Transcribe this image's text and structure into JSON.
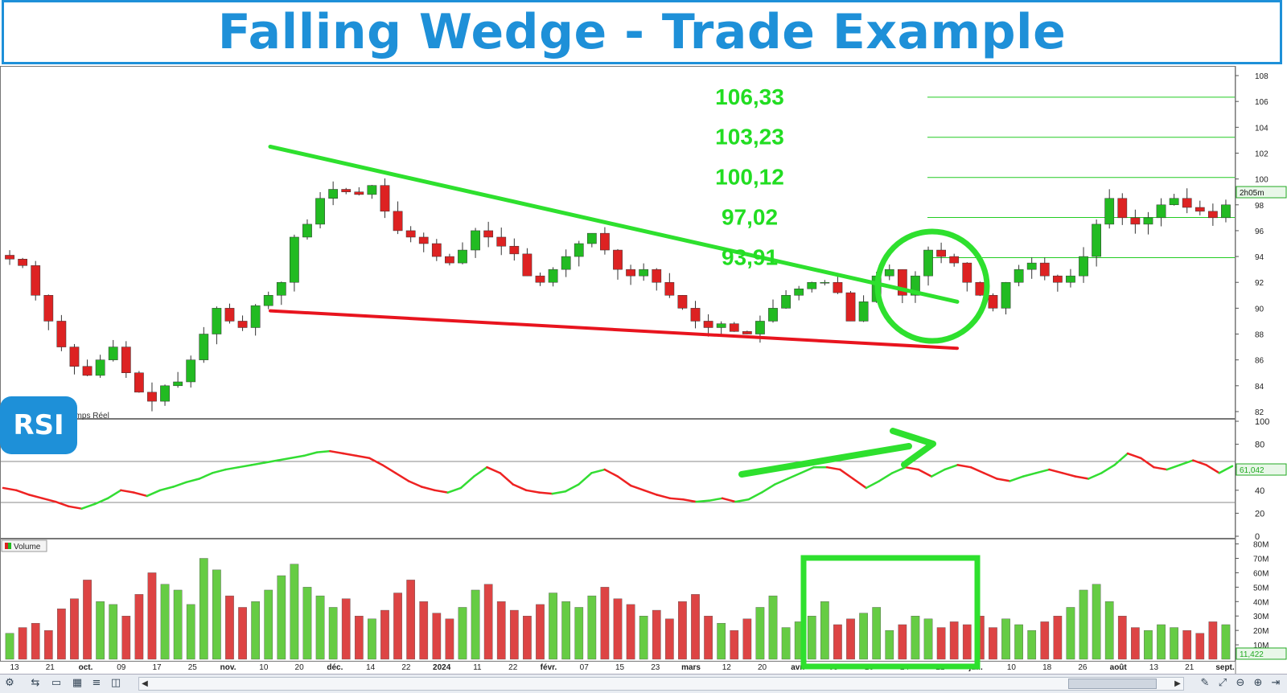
{
  "title": "Falling Wedge - Trade Example",
  "rsi_badge": "RSI",
  "price_panel_label": "emps Réel",
  "time_badge": "2h05m",
  "rsi_value_badge": "61,042",
  "volume_value_badge": "11,422",
  "volume_legend": "Volume",
  "target_levels": [
    "106,33",
    "103,23",
    "100,12",
    "97,02",
    "93,91"
  ],
  "colors": {
    "accent": "#1e90d8",
    "wedge_upper": "#2ee02e",
    "wedge_lower": "#e8141e",
    "up_candle": "#22bb22",
    "down_candle": "#dd2222",
    "level_text": "#22dd22"
  },
  "chart_data": [
    {
      "type": "candlestick",
      "panel": "price",
      "y_axis_ticks": [
        "82",
        "84",
        "86",
        "88",
        "90",
        "92",
        "94",
        "96",
        "98",
        "100",
        "102",
        "104",
        "106",
        "108"
      ],
      "ylim": [
        81.5,
        108.5
      ],
      "x_tick_labels": [
        "13",
        "21",
        "oct.",
        "09",
        "17",
        "25",
        "nov.",
        "10",
        "20",
        "déc.",
        "14",
        "22",
        "2024",
        "11",
        "22",
        "févr.",
        "07",
        "15",
        "23",
        "mars",
        "12",
        "20",
        "avr.",
        "08",
        "16",
        "24",
        "21",
        "juil.",
        "10",
        "18",
        "26",
        "août",
        "13",
        "21",
        "sept."
      ],
      "close_path": [
        93.8,
        93.3,
        91.0,
        89.0,
        87.0,
        85.5,
        84.8,
        86.0,
        87.0,
        85.0,
        83.5,
        82.8,
        84.0,
        84.3,
        86.0,
        88.0,
        90.0,
        89.0,
        88.5,
        90.2,
        91.0,
        92.0,
        95.5,
        96.5,
        98.5,
        99.2,
        99.0,
        98.8,
        99.5,
        97.5,
        96.0,
        95.5,
        95.0,
        94.0,
        93.5,
        94.5,
        96.0,
        95.5,
        94.8,
        94.2,
        92.5,
        92.0,
        93.0,
        94.0,
        95.0,
        95.8,
        94.5,
        93.0,
        92.5,
        93.0,
        92.0,
        91.0,
        90.0,
        89.0,
        88.5,
        88.8,
        88.2,
        88.0,
        89.0,
        90.0,
        91.0,
        91.5,
        92.0,
        92.0,
        91.2,
        89.0,
        90.5,
        92.5,
        93.0,
        91.0,
        92.5,
        94.5,
        94.0,
        93.5,
        92.0,
        91.0,
        90.0,
        92.0,
        93.0,
        93.5,
        92.5,
        92.0,
        92.5,
        94.0,
        96.5,
        98.5,
        97.0,
        96.5,
        97.0,
        98.0,
        98.5,
        97.8,
        97.5,
        97.0,
        98.0
      ],
      "wedge_upper_line": {
        "start": 102.5,
        "end": 90.5
      },
      "wedge_lower_line": {
        "start": 89.8,
        "end": 86.9
      },
      "target_level_values": [
        106.33,
        103.23,
        100.12,
        97.02,
        93.91
      ]
    },
    {
      "type": "line",
      "panel": "rsi",
      "y_axis_ticks": [
        "0",
        "20",
        "40",
        "60",
        "80",
        "100"
      ],
      "ylim": [
        0,
        100
      ],
      "reference_lines": [
        30,
        70
      ],
      "values": [
        42,
        40,
        36,
        33,
        30,
        26,
        24,
        28,
        33,
        40,
        38,
        35,
        40,
        43,
        47,
        50,
        55,
        58,
        60,
        62,
        64,
        66,
        68,
        70,
        73,
        74,
        72,
        70,
        68,
        62,
        55,
        48,
        43,
        40,
        38,
        42,
        52,
        60,
        55,
        45,
        40,
        38,
        37,
        39,
        45,
        55,
        58,
        52,
        44,
        40,
        36,
        33,
        32,
        30,
        31,
        33,
        30,
        32,
        38,
        45,
        50,
        55,
        60,
        60,
        58,
        50,
        42,
        48,
        55,
        60,
        58,
        52,
        58,
        62,
        60,
        55,
        50,
        48,
        52,
        55,
        58,
        55,
        52,
        50,
        55,
        62,
        72,
        68,
        60,
        58,
        62,
        66,
        62,
        55,
        61
      ]
    },
    {
      "type": "bar",
      "panel": "volume",
      "y_axis_ticks": [
        "10M",
        "20M",
        "30M",
        "40M",
        "50M",
        "60M",
        "70M",
        "80M"
      ],
      "ylim": [
        0,
        82
      ],
      "values": [
        18,
        22,
        25,
        20,
        35,
        42,
        55,
        40,
        38,
        30,
        45,
        60,
        52,
        48,
        38,
        70,
        62,
        44,
        36,
        40,
        48,
        58,
        66,
        50,
        44,
        36,
        42,
        30,
        28,
        34,
        46,
        55,
        40,
        32,
        28,
        36,
        48,
        52,
        40,
        34,
        30,
        38,
        46,
        40,
        36,
        44,
        50,
        42,
        38,
        30,
        34,
        28,
        40,
        45,
        30,
        25,
        20,
        28,
        36,
        44,
        22,
        26,
        30,
        40,
        24,
        28,
        32,
        36,
        20,
        24,
        30,
        28,
        22,
        26,
        24,
        30,
        22,
        28,
        24,
        20,
        26,
        30,
        36,
        48,
        52,
        40,
        30,
        22,
        20,
        24,
        22,
        20,
        18,
        26,
        24
      ]
    }
  ]
}
